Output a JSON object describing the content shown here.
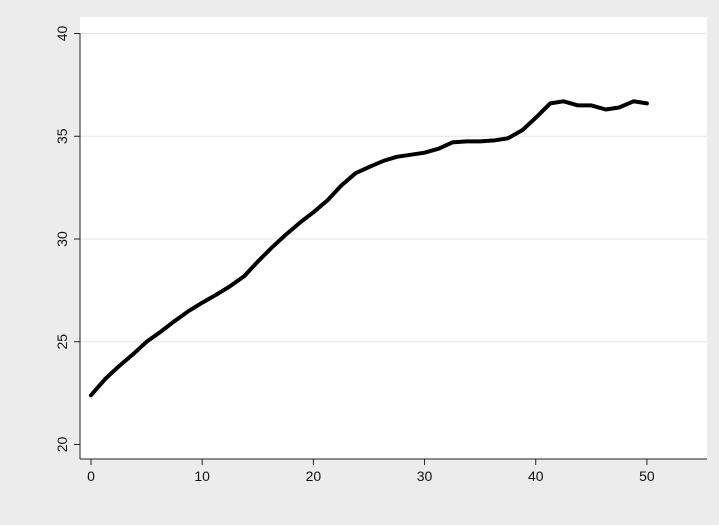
{
  "chart_data": {
    "type": "line",
    "title": "",
    "xlabel": "",
    "ylabel": "",
    "xlim": [
      0,
      55
    ],
    "ylim": [
      20,
      40
    ],
    "x_ticks": [
      0,
      10,
      20,
      30,
      40,
      50
    ],
    "y_ticks": [
      20,
      25,
      30,
      35,
      40
    ],
    "grid": true,
    "legend": "none",
    "series": [
      {
        "color": "#000000",
        "x": [
          0,
          1.3,
          2.5,
          3.8,
          5,
          6.3,
          7.5,
          8.8,
          10,
          11.3,
          12.5,
          13.8,
          15,
          16.3,
          17.5,
          18.8,
          20,
          21.3,
          22.5,
          23.8,
          25,
          26.3,
          27.5,
          28.8,
          30,
          31.3,
          32.5,
          33.8,
          35,
          36.3,
          37.5,
          38.8,
          40,
          41.3,
          42.5,
          43.8,
          45,
          46.3,
          47.5,
          48.8,
          50
        ],
        "y": [
          22.4,
          23.2,
          23.8,
          24.4,
          25.0,
          25.5,
          26.0,
          26.5,
          26.9,
          27.3,
          27.7,
          28.2,
          28.9,
          29.6,
          30.2,
          30.8,
          31.3,
          31.9,
          32.6,
          33.2,
          33.5,
          33.8,
          34.0,
          34.1,
          34.2,
          34.4,
          34.7,
          34.75,
          34.75,
          34.8,
          34.9,
          35.3,
          35.9,
          36.6,
          36.7,
          36.5,
          36.5,
          36.3,
          36.4,
          36.7,
          36.6
        ]
      }
    ]
  }
}
